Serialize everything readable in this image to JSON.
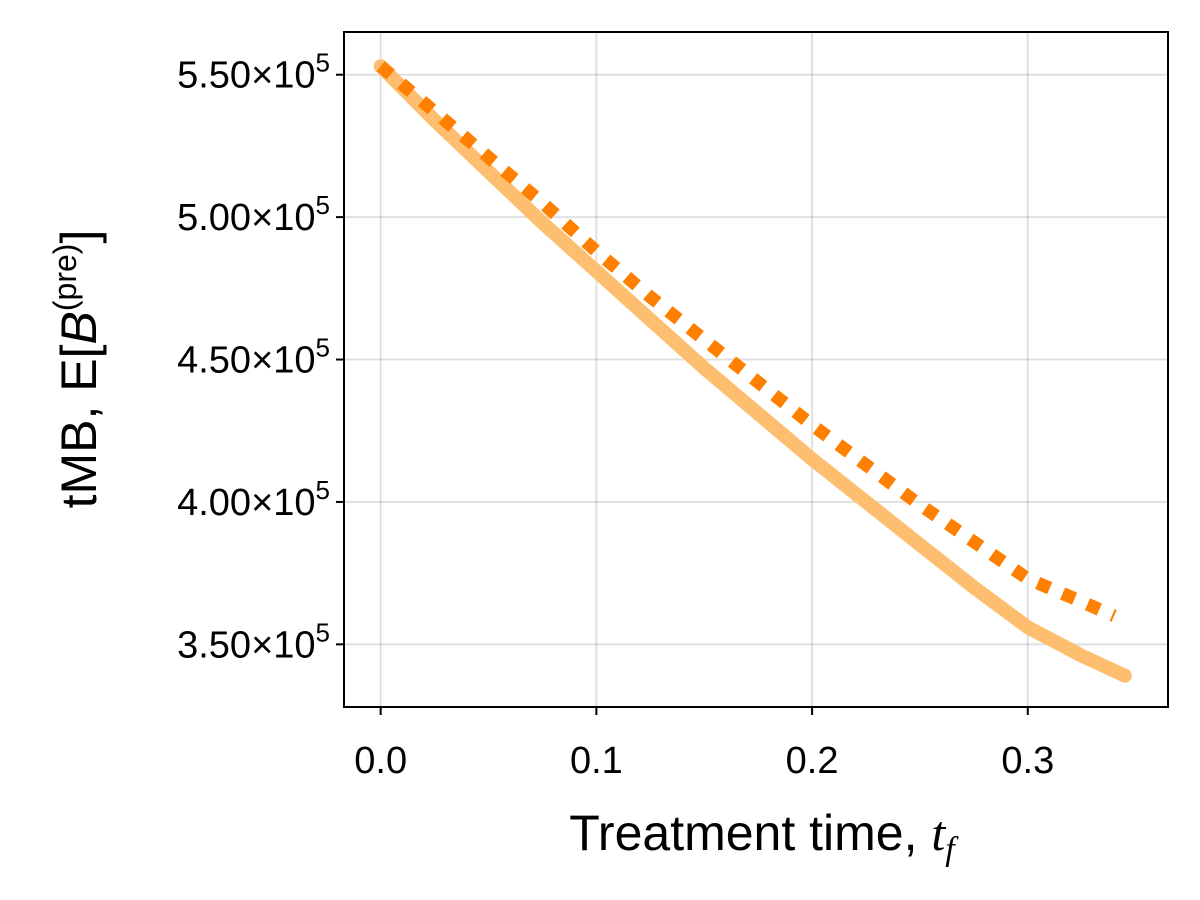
{
  "chart_data": {
    "type": "line",
    "xlabel": "Treatment time, ",
    "xlabel_var": "t",
    "xlabel_sub": "f",
    "ylabel": "tMB, E[",
    "ylabel_var": "B",
    "ylabel_sup": "(pre)",
    "ylabel_close": "]",
    "xlim": [
      -0.017,
      0.365
    ],
    "ylim": [
      328000,
      565000
    ],
    "x_ticks": [
      {
        "value": 0.0,
        "label": "0.0"
      },
      {
        "value": 0.1,
        "label": "0.1"
      },
      {
        "value": 0.2,
        "label": "0.2"
      },
      {
        "value": 0.3,
        "label": "0.3"
      }
    ],
    "y_ticks": [
      {
        "value": 350000,
        "mantissa": "3.50",
        "times": "×10",
        "exp": "5"
      },
      {
        "value": 400000,
        "mantissa": "4.00",
        "times": "×10",
        "exp": "5"
      },
      {
        "value": 450000,
        "mantissa": "4.50",
        "times": "×10",
        "exp": "5"
      },
      {
        "value": 500000,
        "mantissa": "5.00",
        "times": "×10",
        "exp": "5"
      },
      {
        "value": 550000,
        "mantissa": "5.50",
        "times": "×10",
        "exp": "5"
      }
    ],
    "grid": true,
    "series": [
      {
        "style": "solid",
        "color": "#fdbf6f",
        "x": [
          0.0,
          0.025,
          0.05,
          0.075,
          0.1,
          0.125,
          0.15,
          0.175,
          0.2,
          0.225,
          0.25,
          0.275,
          0.3,
          0.325,
          0.345
        ],
        "y": [
          553000,
          534000,
          516000,
          498000,
          481000,
          464000,
          447000,
          431000,
          415000,
          400000,
          385000,
          370000,
          356000,
          346000,
          339000
        ]
      },
      {
        "style": "dotted",
        "color": "#ff7f00",
        "x": [
          0.0,
          0.025,
          0.05,
          0.075,
          0.1,
          0.125,
          0.15,
          0.175,
          0.2,
          0.225,
          0.25,
          0.275,
          0.3,
          0.325,
          0.34
        ],
        "y": [
          553000,
          537000,
          521000,
          505000,
          488000,
          472000,
          457000,
          442000,
          427000,
          413000,
          399000,
          386000,
          373000,
          365000,
          360000
        ]
      }
    ]
  }
}
